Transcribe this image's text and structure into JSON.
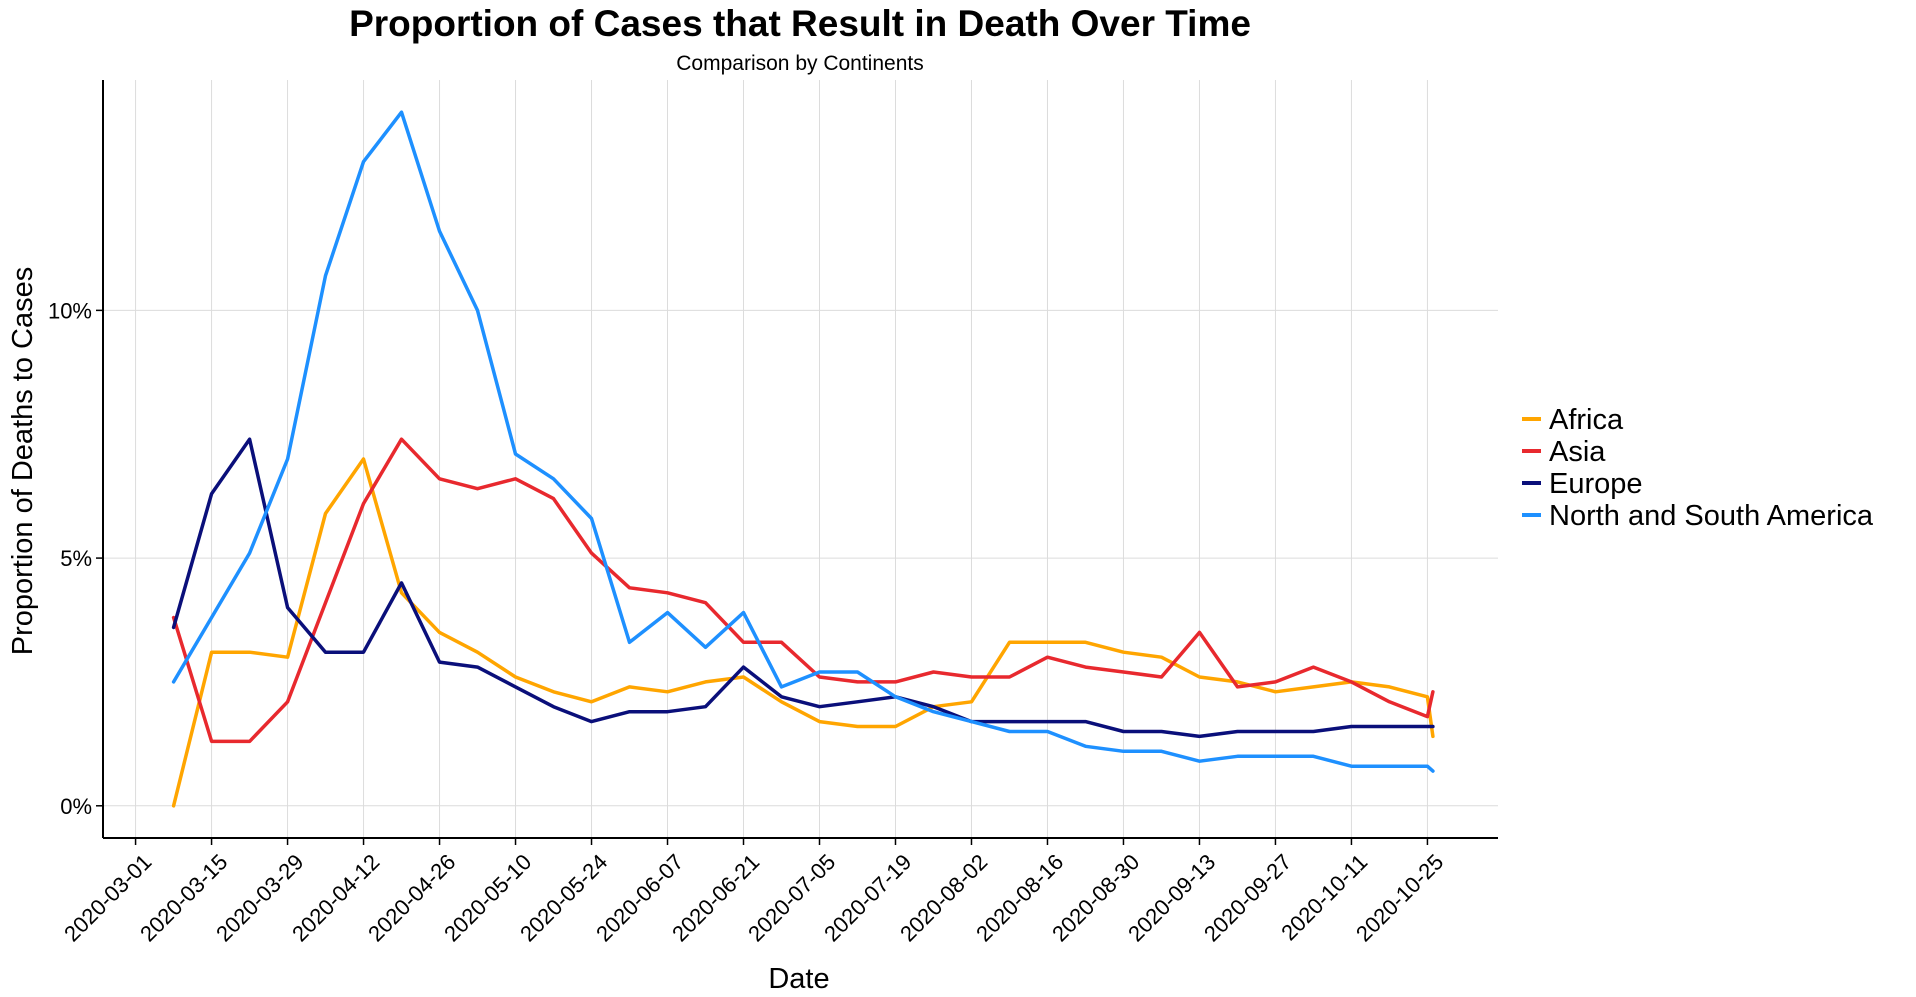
{
  "chart_data": {
    "type": "line",
    "title": "Proportion of Cases that Result in Death Over Time",
    "subtitle": "Comparison by Continents",
    "xlabel": "Date",
    "ylabel": "Proportion of Deaths to Cases",
    "x_ticks": [
      "2020-03-01",
      "2020-03-15",
      "2020-03-29",
      "2020-04-12",
      "2020-04-26",
      "2020-05-10",
      "2020-05-24",
      "2020-06-07",
      "2020-06-21",
      "2020-07-05",
      "2020-07-19",
      "2020-08-02",
      "2020-08-16",
      "2020-08-30",
      "2020-09-13",
      "2020-09-27",
      "2020-10-11",
      "2020-10-25"
    ],
    "y_ticks": [
      {
        "value": 0,
        "label": "0%"
      },
      {
        "value": 0.05,
        "label": "5%"
      },
      {
        "value": 0.1,
        "label": "10%"
      }
    ],
    "xlim": [
      "2020-02-24",
      "2020-11-07"
    ],
    "ylim": [
      -0.0065,
      0.1465
    ],
    "grid": true,
    "legend_position": "right",
    "series": [
      {
        "name": "Africa",
        "color": "#FFA500",
        "points": [
          [
            "2020-03-08",
            0.0
          ],
          [
            "2020-03-15",
            0.031
          ],
          [
            "2020-03-22",
            0.031
          ],
          [
            "2020-03-29",
            0.03
          ],
          [
            "2020-04-05",
            0.059
          ],
          [
            "2020-04-12",
            0.07
          ],
          [
            "2020-04-19",
            0.043
          ],
          [
            "2020-04-26",
            0.035
          ],
          [
            "2020-05-03",
            0.031
          ],
          [
            "2020-05-10",
            0.026
          ],
          [
            "2020-05-17",
            0.023
          ],
          [
            "2020-05-24",
            0.021
          ],
          [
            "2020-05-31",
            0.024
          ],
          [
            "2020-06-07",
            0.023
          ],
          [
            "2020-06-14",
            0.025
          ],
          [
            "2020-06-21",
            0.026
          ],
          [
            "2020-06-28",
            0.021
          ],
          [
            "2020-07-05",
            0.017
          ],
          [
            "2020-07-12",
            0.016
          ],
          [
            "2020-07-19",
            0.016
          ],
          [
            "2020-07-26",
            0.02
          ],
          [
            "2020-08-02",
            0.021
          ],
          [
            "2020-08-09",
            0.033
          ],
          [
            "2020-08-16",
            0.033
          ],
          [
            "2020-08-23",
            0.033
          ],
          [
            "2020-08-30",
            0.031
          ],
          [
            "2020-09-06",
            0.03
          ],
          [
            "2020-09-13",
            0.026
          ],
          [
            "2020-09-20",
            0.025
          ],
          [
            "2020-09-27",
            0.023
          ],
          [
            "2020-10-04",
            0.024
          ],
          [
            "2020-10-11",
            0.025
          ],
          [
            "2020-10-18",
            0.024
          ],
          [
            "2020-10-25",
            0.022
          ],
          [
            "2020-10-26",
            0.014
          ]
        ]
      },
      {
        "name": "Asia",
        "color": "#E8292E",
        "points": [
          [
            "2020-03-08",
            0.038
          ],
          [
            "2020-03-15",
            0.013
          ],
          [
            "2020-03-22",
            0.013
          ],
          [
            "2020-03-29",
            0.021
          ],
          [
            "2020-04-05",
            0.041
          ],
          [
            "2020-04-12",
            0.061
          ],
          [
            "2020-04-19",
            0.074
          ],
          [
            "2020-04-26",
            0.066
          ],
          [
            "2020-05-03",
            0.064
          ],
          [
            "2020-05-10",
            0.066
          ],
          [
            "2020-05-17",
            0.062
          ],
          [
            "2020-05-24",
            0.051
          ],
          [
            "2020-05-31",
            0.044
          ],
          [
            "2020-06-07",
            0.043
          ],
          [
            "2020-06-14",
            0.041
          ],
          [
            "2020-06-21",
            0.033
          ],
          [
            "2020-06-28",
            0.033
          ],
          [
            "2020-07-05",
            0.026
          ],
          [
            "2020-07-12",
            0.025
          ],
          [
            "2020-07-19",
            0.025
          ],
          [
            "2020-07-26",
            0.027
          ],
          [
            "2020-08-02",
            0.026
          ],
          [
            "2020-08-09",
            0.026
          ],
          [
            "2020-08-16",
            0.03
          ],
          [
            "2020-08-23",
            0.028
          ],
          [
            "2020-08-30",
            0.027
          ],
          [
            "2020-09-06",
            0.026
          ],
          [
            "2020-09-13",
            0.035
          ],
          [
            "2020-09-20",
            0.024
          ],
          [
            "2020-09-27",
            0.025
          ],
          [
            "2020-10-04",
            0.028
          ],
          [
            "2020-10-11",
            0.025
          ],
          [
            "2020-10-18",
            0.021
          ],
          [
            "2020-10-25",
            0.018
          ],
          [
            "2020-10-26",
            0.023
          ]
        ]
      },
      {
        "name": "Europe",
        "color": "#0A0F7A",
        "points": [
          [
            "2020-03-08",
            0.036
          ],
          [
            "2020-03-15",
            0.063
          ],
          [
            "2020-03-22",
            0.074
          ],
          [
            "2020-03-29",
            0.04
          ],
          [
            "2020-04-05",
            0.031
          ],
          [
            "2020-04-12",
            0.031
          ],
          [
            "2020-04-19",
            0.045
          ],
          [
            "2020-04-26",
            0.029
          ],
          [
            "2020-05-03",
            0.028
          ],
          [
            "2020-05-10",
            0.024
          ],
          [
            "2020-05-17",
            0.02
          ],
          [
            "2020-05-24",
            0.017
          ],
          [
            "2020-05-31",
            0.019
          ],
          [
            "2020-06-07",
            0.019
          ],
          [
            "2020-06-14",
            0.02
          ],
          [
            "2020-06-21",
            0.028
          ],
          [
            "2020-06-28",
            0.022
          ],
          [
            "2020-07-05",
            0.02
          ],
          [
            "2020-07-12",
            0.021
          ],
          [
            "2020-07-19",
            0.022
          ],
          [
            "2020-07-26",
            0.02
          ],
          [
            "2020-08-02",
            0.017
          ],
          [
            "2020-08-09",
            0.017
          ],
          [
            "2020-08-16",
            0.017
          ],
          [
            "2020-08-23",
            0.017
          ],
          [
            "2020-08-30",
            0.015
          ],
          [
            "2020-09-06",
            0.015
          ],
          [
            "2020-09-13",
            0.014
          ],
          [
            "2020-09-20",
            0.015
          ],
          [
            "2020-09-27",
            0.015
          ],
          [
            "2020-10-04",
            0.015
          ],
          [
            "2020-10-11",
            0.016
          ],
          [
            "2020-10-18",
            0.016
          ],
          [
            "2020-10-25",
            0.016
          ],
          [
            "2020-10-26",
            0.016
          ]
        ]
      },
      {
        "name": "North and South America",
        "color": "#1E90FF",
        "points": [
          [
            "2020-03-08",
            0.025
          ],
          [
            "2020-03-15",
            0.038
          ],
          [
            "2020-03-22",
            0.051
          ],
          [
            "2020-03-29",
            0.07
          ],
          [
            "2020-04-05",
            0.107
          ],
          [
            "2020-04-12",
            0.13
          ],
          [
            "2020-04-19",
            0.14
          ],
          [
            "2020-04-26",
            0.116
          ],
          [
            "2020-05-03",
            0.1
          ],
          [
            "2020-05-10",
            0.071
          ],
          [
            "2020-05-17",
            0.066
          ],
          [
            "2020-05-24",
            0.058
          ],
          [
            "2020-05-31",
            0.033
          ],
          [
            "2020-06-07",
            0.039
          ],
          [
            "2020-06-14",
            0.032
          ],
          [
            "2020-06-21",
            0.039
          ],
          [
            "2020-06-28",
            0.024
          ],
          [
            "2020-07-05",
            0.027
          ],
          [
            "2020-07-12",
            0.027
          ],
          [
            "2020-07-19",
            0.022
          ],
          [
            "2020-07-26",
            0.019
          ],
          [
            "2020-08-02",
            0.017
          ],
          [
            "2020-08-09",
            0.015
          ],
          [
            "2020-08-16",
            0.015
          ],
          [
            "2020-08-23",
            0.012
          ],
          [
            "2020-08-30",
            0.011
          ],
          [
            "2020-09-06",
            0.011
          ],
          [
            "2020-09-13",
            0.009
          ],
          [
            "2020-09-20",
            0.01
          ],
          [
            "2020-09-27",
            0.01
          ],
          [
            "2020-10-04",
            0.01
          ],
          [
            "2020-10-11",
            0.008
          ],
          [
            "2020-10-18",
            0.008
          ],
          [
            "2020-10-25",
            0.008
          ],
          [
            "2020-10-26",
            0.007
          ]
        ]
      }
    ]
  }
}
